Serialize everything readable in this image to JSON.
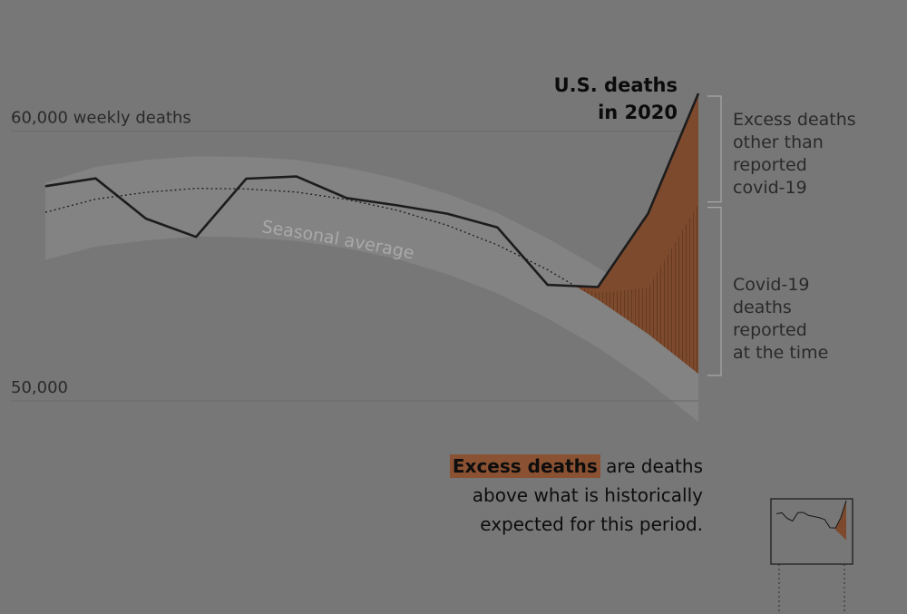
{
  "chart_data": {
    "type": "line",
    "title": "U.S. deaths in 2020",
    "title_lines": [
      "U.S. deaths",
      "in 2020"
    ],
    "ylabel": "60,000 weekly deaths",
    "ytick_labels": [
      "60,000 weekly deaths",
      "50,000"
    ],
    "y_gridlines": [
      60000,
      50000
    ],
    "ylim": [
      49000,
      61500
    ],
    "x_weeks": [
      1,
      2,
      3,
      4,
      5,
      6,
      7,
      8,
      9,
      10,
      11,
      12,
      13,
      14
    ],
    "series": [
      {
        "name": "U.S. deaths in 2020",
        "values": [
          57960,
          58250,
          56760,
          56080,
          58240,
          58320,
          57520,
          57250,
          56940,
          56430,
          54300,
          54220,
          56950,
          61400
        ]
      },
      {
        "name": "Seasonal average",
        "values": [
          56990,
          57480,
          57730,
          57880,
          57860,
          57740,
          57470,
          57070,
          56510,
          55780,
          54860,
          53760,
          52480,
          51010
        ]
      },
      {
        "name": "Covid-19 deaths reported at the time",
        "values": [
          null,
          null,
          null,
          null,
          null,
          null,
          null,
          null,
          null,
          null,
          null,
          54000,
          54200,
          57310
        ]
      }
    ],
    "band": {
      "upper": [
        58090,
        58680,
        58930,
        59070,
        59050,
        58930,
        58650,
        58240,
        57680,
        56960,
        56030,
        54950,
        53670,
        52180
      ],
      "lower": [
        55230,
        55720,
        55950,
        56100,
        56060,
        55930,
        55660,
        55260,
        54700,
        53990,
        53060,
        51980,
        50700,
        49220
      ]
    },
    "labels": {
      "seasonal": "Seasonal average",
      "excess_other": [
        "Excess deaths",
        "other than",
        "reported",
        "covid-19"
      ],
      "covid": [
        "Covid-19",
        "deaths",
        "reported",
        "at the time"
      ]
    }
  },
  "note": {
    "highlight": "Excess deaths",
    "rest": " are deaths above what is historically expected for this period."
  },
  "colors": {
    "background": "#777777",
    "band": "#838383",
    "line": "#1c1c1c",
    "excess_fill": "#7d4a2e",
    "excess_hatch": "#5a321c",
    "bracket": "#a8a8a8",
    "minimap_border": "#2a2a2a"
  }
}
